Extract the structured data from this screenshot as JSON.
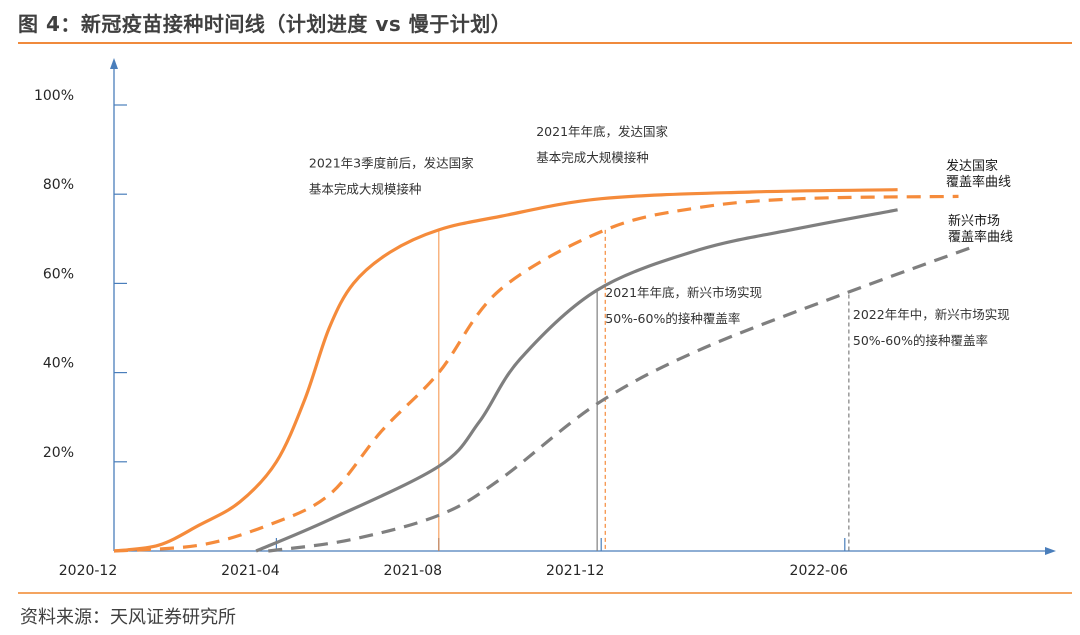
{
  "header": {
    "title": "图 4：新冠疫苗接种时间线（计划进度 vs 慢于计划）"
  },
  "footer": {
    "source": "资料来源：天风证券研究所"
  },
  "colors": {
    "developed": "#f58b3b",
    "emerging": "#7f7f7f",
    "axis": "#4a7ebb",
    "rule": "#f08a3c",
    "text": "#262626"
  },
  "chart_data": {
    "type": "line",
    "title": "新冠疫苗接种时间线（计划进度 vs 慢于计划）",
    "xlabel": "",
    "ylabel": "",
    "x_unit": "months since 2020-12",
    "xlim": [
      0,
      23
    ],
    "ylim": [
      0,
      100
    ],
    "grid": false,
    "x_ticks": [
      {
        "label": "2020-12",
        "value": 0
      },
      {
        "label": "2021-04",
        "value": 4
      },
      {
        "label": "2021-08",
        "value": 8
      },
      {
        "label": "2021-12",
        "value": 12
      },
      {
        "label": "2022-06",
        "value": 18
      }
    ],
    "y_ticks": [
      {
        "label": "20%",
        "value": 20
      },
      {
        "label": "40%",
        "value": 40
      },
      {
        "label": "60%",
        "value": 60
      },
      {
        "label": "80%",
        "value": 80
      },
      {
        "label": "100%",
        "value": 100
      }
    ],
    "series": [
      {
        "name": "发达国家覆盖率曲线（计划进度）",
        "group": "developed",
        "style": "solid",
        "x": [
          0,
          1.1,
          2.1,
          3.1,
          4.0,
          4.7,
          5.3,
          5.9,
          6.8,
          8.0,
          9.5,
          12.0,
          15.7,
          19.3
        ],
        "y": [
          0,
          1.3,
          5.8,
          11,
          20,
          34,
          50,
          60,
          67,
          72,
          75,
          79,
          80.5,
          81
        ]
      },
      {
        "name": "发达国家覆盖率曲线（慢于计划）",
        "group": "developed",
        "style": "dashed",
        "x": [
          0,
          2.1,
          3.8,
          5.3,
          6.6,
          8.0,
          9.5,
          12.1,
          14.4,
          16.9,
          20.8
        ],
        "y": [
          0,
          1.3,
          5.8,
          12.6,
          27,
          40,
          58.5,
          72,
          77,
          79,
          79.5
        ]
      },
      {
        "name": "新兴市场覆盖率曲线（计划进度）",
        "group": "emerging",
        "style": "solid",
        "x": [
          3.5,
          5.3,
          8.0,
          9.0,
          10.0,
          11.9,
          14.4,
          16.9,
          19.3
        ],
        "y": [
          0,
          7,
          19,
          29,
          43,
          58.5,
          67.5,
          72.4,
          76.5
        ]
      },
      {
        "name": "新兴市场覆盖率曲线（慢于计划）",
        "group": "emerging",
        "style": "dashed",
        "x": [
          3.8,
          5.8,
          8.0,
          9.5,
          11.9,
          14.4,
          17.9,
          21.1
        ],
        "y": [
          0,
          2.5,
          8,
          16,
          33,
          45,
          57.4,
          68
        ]
      }
    ],
    "markers": [
      {
        "x": 8.0,
        "y": 72,
        "group": "developed",
        "style": "solid"
      },
      {
        "x": 12.1,
        "y": 72,
        "group": "developed",
        "style": "dotted"
      },
      {
        "x": 11.9,
        "y": 58.5,
        "group": "emerging",
        "style": "solid"
      },
      {
        "x": 18.1,
        "y": 57.5,
        "group": "emerging",
        "style": "dotted"
      }
    ],
    "annotations": [
      {
        "lines": [
          "2021年3季度前后，发达国家",
          "基本完成大规模接种"
        ],
        "x": 4.8,
        "y": 86
      },
      {
        "lines": [
          "2021年年底，发达国家",
          "基本完成大规模接种"
        ],
        "x": 10.4,
        "y": 93
      },
      {
        "lines": [
          "2021年年底，新兴市场实现",
          "50%-60%的接种覆盖率"
        ],
        "x": 12.1,
        "y": 57
      },
      {
        "lines": [
          "2022年年中，新兴市场实现",
          "50%-60%的接种覆盖率"
        ],
        "x": 18.2,
        "y": 52
      }
    ],
    "legend": [
      {
        "lines": [
          "发达国家",
          "覆盖率曲线"
        ],
        "group": "developed",
        "placement": "right"
      },
      {
        "lines": [
          "新兴市场",
          "覆盖率曲线"
        ],
        "group": "emerging",
        "placement": "right"
      }
    ]
  }
}
